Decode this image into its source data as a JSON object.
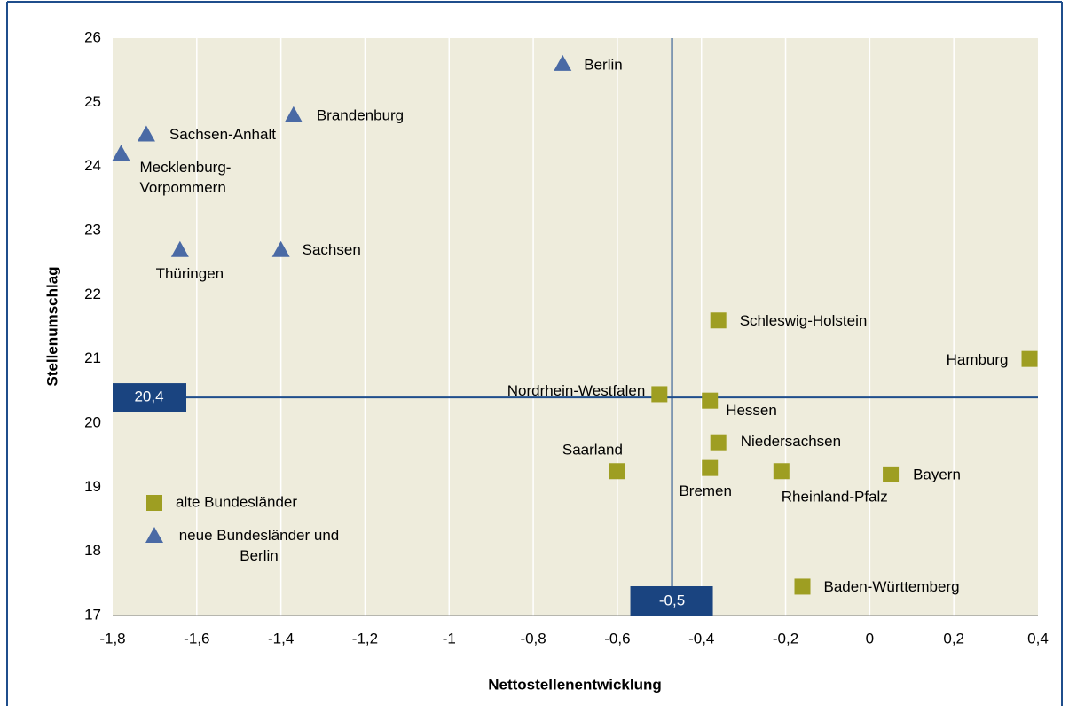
{
  "chart_data": {
    "type": "scatter",
    "x_label": "Nettostellenentwicklung",
    "y_label": "Stellenumschlag",
    "xlim": [
      -1.8,
      0.4
    ],
    "xticks": [
      {
        "value": -1.8,
        "label": "-1,8"
      },
      {
        "value": -1.6,
        "label": "-1,6"
      },
      {
        "value": -1.4,
        "label": "-1,4"
      },
      {
        "value": -1.2,
        "label": "-1,2"
      },
      -1,
      {
        "value": -0.8,
        "label": "-0,8"
      },
      {
        "value": -0.6,
        "label": "-0,6"
      },
      {
        "value": -0.4,
        "label": "-0,4"
      },
      {
        "value": -0.2,
        "label": "-0,2"
      },
      0,
      {
        "value": 0.2,
        "label": "0,2"
      },
      {
        "value": 0.4,
        "label": "0,4"
      }
    ],
    "ylim": [
      17,
      26
    ],
    "yticks": [
      17,
      18,
      19,
      20,
      21,
      22,
      23,
      24,
      25,
      26
    ],
    "grid": "x",
    "reference_lines": {
      "x": {
        "value": -0.47,
        "label": "-0,5"
      },
      "y": {
        "value": 20.4,
        "label": "20,4"
      }
    },
    "series": [
      {
        "name": "alte Bundesländer",
        "marker": "square",
        "color": "#9e9e22",
        "names": [
          "Schleswig-Holstein",
          "Hamburg",
          "Nordrhein-Westfalen",
          "Hessen",
          "Niedersachsen",
          "Saarland",
          "Bremen",
          "Rheinland-Pfalz",
          "Bayern",
          "Baden-Württemberg"
        ],
        "x": [
          -0.36,
          0.38,
          -0.5,
          -0.38,
          -0.36,
          -0.6,
          -0.38,
          -0.21,
          0.05,
          -0.16
        ],
        "values": [
          21.6,
          21.0,
          20.45,
          20.35,
          19.7,
          19.25,
          19.3,
          19.25,
          19.2,
          17.45
        ]
      },
      {
        "name": "neue Bundesländer und Berlin",
        "marker": "triangle",
        "color": "#4a6aa5",
        "names": [
          "Berlin",
          "Brandenburg",
          "Sachsen-Anhalt",
          "Mecklenburg-Vorpommern",
          "Thüringen",
          "Sachsen"
        ],
        "x": [
          -0.73,
          -1.37,
          -1.72,
          -1.78,
          -1.64,
          -1.4
        ],
        "values": [
          25.6,
          24.8,
          24.5,
          24.2,
          22.7,
          22.7
        ]
      }
    ]
  }
}
